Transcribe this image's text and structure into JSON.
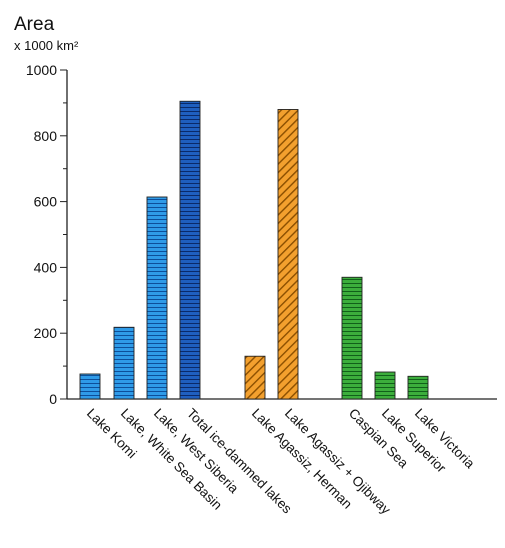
{
  "chart_data": {
    "type": "bar",
    "title": "Area",
    "ylabel": "x 1000 km²",
    "xlabel": "",
    "ylim": [
      0,
      1000
    ],
    "yticks": [
      0,
      200,
      400,
      600,
      800,
      1000
    ],
    "grid": false,
    "categories": [
      "Lake Komi",
      "Lake, White Sea Basin",
      "Lake, West Siberia",
      "Total ice-dammed lakes",
      "Lake Agassiz, Herman",
      "Lake Agassiz + Ojibway",
      "Caspian Sea",
      "Lake Superior",
      "Lake Victoria"
    ],
    "values": [
      76,
      218,
      614,
      905,
      130,
      880,
      370,
      82,
      69
    ],
    "colors": [
      "#2f9be8",
      "#2f9be8",
      "#2f9be8",
      "#1f5fbf",
      "#f3a02e",
      "#f3a02e",
      "#3cae3c",
      "#3cae3c",
      "#3cae3c"
    ],
    "patterns": [
      "horizontal-lines",
      "horizontal-lines",
      "horizontal-lines",
      "horizontal-lines",
      "diagonal-hatch",
      "diagonal-hatch",
      "horizontal-lines",
      "horizontal-lines",
      "horizontal-lines"
    ]
  }
}
